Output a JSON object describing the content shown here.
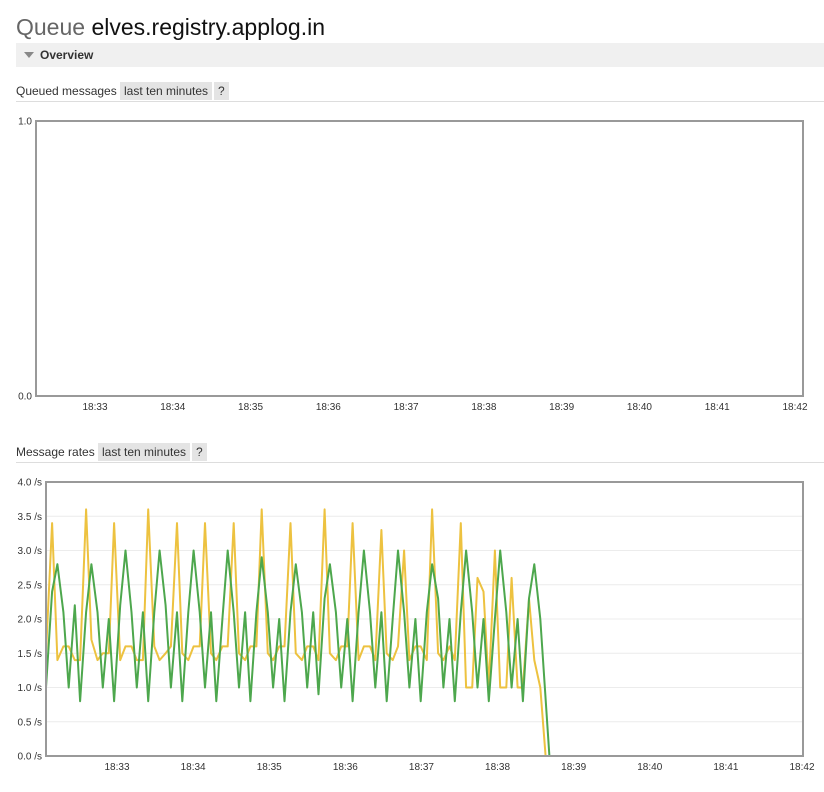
{
  "page": {
    "title_kind": "Queue",
    "title_name": "elves.registry.applog.in"
  },
  "overview": {
    "label": "Overview"
  },
  "chart_data": [
    {
      "type": "line",
      "title": "Queued messages",
      "range_label": "last ten minutes",
      "help_label": "?",
      "x_ticks": [
        "18:33",
        "18:34",
        "18:35",
        "18:36",
        "18:37",
        "18:38",
        "18:39",
        "18:40",
        "18:41",
        "18:42"
      ],
      "y_ticks": [
        "0.0",
        "1.0"
      ],
      "ylim": [
        0,
        1
      ],
      "xlim": [
        0,
        100
      ],
      "grid": true,
      "series": [
        {
          "color": "#c0504d",
          "x": [
            0,
            100
          ],
          "y": [
            0,
            0
          ]
        }
      ]
    },
    {
      "type": "line",
      "title": "Message rates",
      "range_label": "last ten minutes",
      "help_label": "?",
      "x_ticks": [
        "18:33",
        "18:34",
        "18:35",
        "18:36",
        "18:37",
        "18:38",
        "18:39",
        "18:40",
        "18:41",
        "18:42"
      ],
      "y_ticks": [
        "0.0 /s",
        "0.5 /s",
        "1.0 /s",
        "1.5 /s",
        "2.0 /s",
        "2.5 /s",
        "3.0 /s",
        "3.5 /s",
        "4.0 /s"
      ],
      "ylim": [
        0,
        4
      ],
      "xlim": [
        0,
        100
      ],
      "grid": true,
      "series": [
        {
          "color": "#edc240",
          "x": [
            0,
            0.8,
            1.5,
            2.3,
            3.0,
            3.8,
            4.5,
            5.3,
            6.0,
            6.8,
            7.5,
            8.3,
            9.0,
            9.8,
            10.5,
            11.3,
            12.0,
            12.8,
            13.5,
            14.3,
            15.0,
            15.8,
            16.5,
            17.3,
            18.0,
            18.8,
            19.5,
            20.3,
            21.0,
            21.8,
            22.5,
            23.3,
            24.0,
            24.8,
            25.5,
            26.3,
            27.0,
            27.8,
            28.5,
            29.3,
            30.0,
            30.8,
            31.5,
            32.3,
            33.0,
            33.8,
            34.5,
            35.3,
            36.0,
            36.8,
            37.5,
            38.3,
            39.0,
            39.8,
            40.5,
            41.3,
            42.0,
            42.8,
            43.5,
            44.3,
            45.0,
            45.8,
            46.5,
            47.3,
            48.0,
            48.8,
            49.5,
            50.3,
            51.0,
            51.8,
            52.5,
            53.3,
            54.0,
            54.8,
            55.5,
            56.3,
            57.0,
            57.8,
            58.5,
            59.3,
            60.0,
            60.8,
            61.5,
            62.3,
            63.0,
            63.8,
            64.5,
            65.3,
            66.0,
            100
          ],
          "y": [
            1.5,
            3.4,
            1.4,
            1.6,
            1.6,
            1.4,
            1.4,
            3.6,
            1.7,
            1.4,
            1.5,
            1.5,
            3.4,
            1.4,
            1.6,
            1.6,
            1.4,
            1.4,
            3.6,
            1.6,
            1.4,
            1.5,
            1.6,
            3.4,
            1.5,
            1.4,
            1.6,
            1.6,
            3.4,
            1.5,
            1.4,
            1.6,
            1.6,
            3.4,
            1.5,
            1.4,
            1.6,
            1.6,
            3.6,
            1.5,
            1.4,
            1.6,
            1.6,
            3.4,
            1.5,
            1.4,
            1.6,
            1.6,
            1.4,
            3.6,
            1.5,
            1.4,
            1.6,
            1.6,
            3.4,
            1.4,
            1.6,
            1.6,
            1.4,
            3.3,
            1.5,
            1.4,
            1.6,
            3.0,
            1.4,
            1.6,
            1.6,
            1.4,
            3.6,
            1.5,
            1.4,
            1.6,
            1.4,
            3.4,
            1.0,
            1.0,
            2.6,
            2.4,
            1.0,
            3.0,
            1.0,
            1.0,
            2.6,
            1.0,
            1.0,
            2.3,
            1.4,
            1.0,
            0.0,
            0.0
          ]
        },
        {
          "color": "#4da74d",
          "x": [
            0,
            0.8,
            1.5,
            2.3,
            3.0,
            3.8,
            4.5,
            5.3,
            6.0,
            6.8,
            7.5,
            8.3,
            9.0,
            9.8,
            10.5,
            11.3,
            12.0,
            12.8,
            13.5,
            14.3,
            15.0,
            15.8,
            16.5,
            17.3,
            18.0,
            18.8,
            19.5,
            20.3,
            21.0,
            21.8,
            22.5,
            23.3,
            24.0,
            24.8,
            25.5,
            26.3,
            27.0,
            27.8,
            28.5,
            29.3,
            30.0,
            30.8,
            31.5,
            32.3,
            33.0,
            33.8,
            34.5,
            35.3,
            36.0,
            36.8,
            37.5,
            38.3,
            39.0,
            39.8,
            40.5,
            41.3,
            42.0,
            42.8,
            43.5,
            44.3,
            45.0,
            45.8,
            46.5,
            47.3,
            48.0,
            48.8,
            49.5,
            50.3,
            51.0,
            51.8,
            52.5,
            53.3,
            54.0,
            54.8,
            55.5,
            56.3,
            57.0,
            57.8,
            58.5,
            59.3,
            60.0,
            60.8,
            61.5,
            62.3,
            63.0,
            63.8,
            64.5,
            65.3,
            66.5,
            100
          ],
          "y": [
            1.0,
            2.4,
            2.8,
            2.1,
            1.0,
            2.2,
            0.8,
            2.1,
            2.8,
            2.1,
            1.0,
            2.0,
            0.8,
            2.2,
            3.0,
            2.1,
            1.0,
            2.1,
            0.8,
            2.1,
            3.0,
            2.2,
            1.0,
            2.1,
            0.8,
            2.1,
            3.0,
            2.1,
            1.0,
            2.1,
            0.8,
            2.0,
            3.0,
            2.1,
            1.0,
            2.1,
            0.8,
            2.1,
            2.9,
            2.1,
            1.0,
            2.0,
            0.8,
            2.1,
            2.8,
            2.1,
            1.0,
            2.1,
            0.9,
            2.3,
            2.8,
            2.1,
            1.0,
            2.0,
            0.8,
            2.1,
            3.0,
            2.1,
            1.0,
            2.1,
            0.8,
            2.0,
            3.0,
            2.1,
            1.0,
            2.0,
            0.8,
            2.1,
            2.8,
            2.3,
            1.0,
            2.0,
            0.8,
            2.1,
            3.0,
            2.1,
            1.0,
            2.0,
            0.8,
            2.0,
            3.0,
            2.1,
            1.0,
            2.0,
            0.8,
            2.3,
            2.8,
            2.0,
            0.0,
            0.0
          ]
        },
        {
          "color": "#7f72c0",
          "x": [
            0,
            100
          ],
          "y": [
            0,
            0
          ]
        }
      ]
    }
  ]
}
